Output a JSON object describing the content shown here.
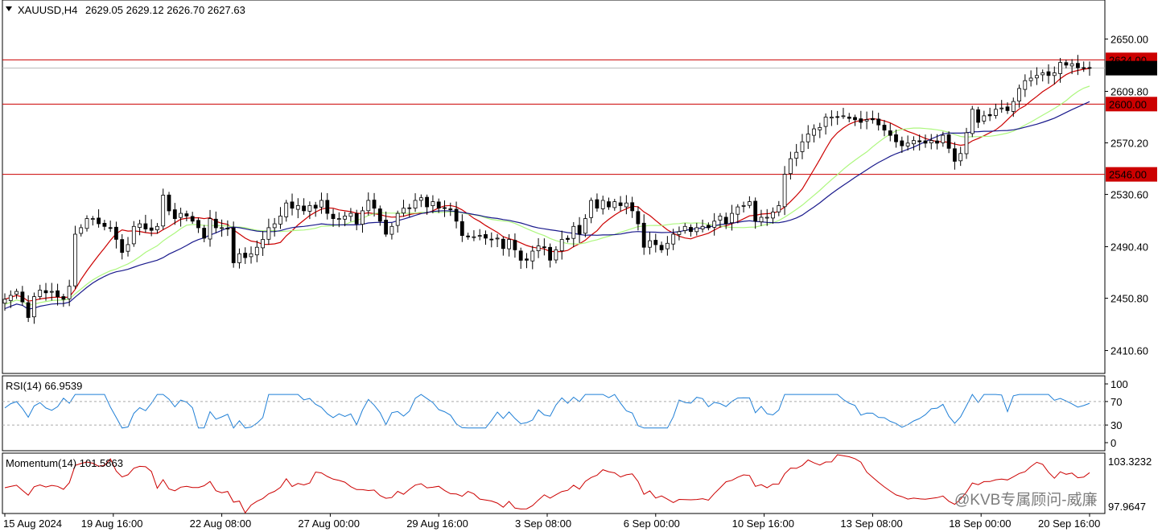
{
  "main_panel": {
    "symbol_title": "XAUUSD,H4",
    "ohlc": "2629.05 2629.12 2626.70 2627.63",
    "price_ticks": [
      "2650.00",
      "2609.80",
      "2570.20",
      "2530.60",
      "2490.40",
      "2450.80",
      "2410.60"
    ],
    "levels": [
      {
        "label": "2634.00",
        "color": "#cc0000"
      },
      {
        "label": "2627.63",
        "color": "#000000"
      },
      {
        "label": "2600.00",
        "color": "#cc0000"
      },
      {
        "label": "2546.00",
        "color": "#cc0000"
      }
    ]
  },
  "rsi_panel": {
    "title": "RSI(14) 66.9539",
    "ticks": [
      "100",
      "70",
      "30",
      "0"
    ],
    "line_color": "#1f7fd6"
  },
  "momentum_panel": {
    "title": "Momentum(14) 101.5863",
    "top_value": "103.3232",
    "bottom_value": "97.9647",
    "line_color": "#cc0000"
  },
  "time_axis": {
    "labels": [
      "15 Aug 2024",
      "19 Aug 16:00",
      "22 Aug 08:00",
      "27 Aug 00:00",
      "29 Aug 16:00",
      "3 Sep 08:00",
      "6 Sep 00:00",
      "10 Sep 16:00",
      "13 Sep 08:00",
      "18 Sep 00:00",
      "20 Sep 16:00"
    ]
  },
  "watermark": "@KVB专属顾问-威廉",
  "colors": {
    "ma_fast": "#cc0000",
    "ma_mid": "#adf77e",
    "ma_slow": "#1a1a8c",
    "candle_up_fill": "#ffffff",
    "candle_down_fill": "#000000"
  },
  "chart_data": [
    {
      "type": "candlestick",
      "title": "XAUUSD,H4",
      "ylim": [
        2393,
        2680
      ],
      "x_labels": [
        "15 Aug 2024",
        "19 Aug 16:00",
        "22 Aug 08:00",
        "27 Aug 00:00",
        "29 Aug 16:00",
        "3 Sep 08:00",
        "6 Sep 00:00",
        "10 Sep 16:00",
        "13 Sep 08:00",
        "18 Sep 00:00",
        "20 Sep 16:00"
      ],
      "close_series": [
        2450,
        2453,
        2456,
        2448,
        2436,
        2452,
        2457,
        2455,
        2456,
        2452,
        2450,
        2460,
        2500,
        2505,
        2512,
        2512,
        2508,
        2506,
        2505,
        2496,
        2486,
        2492,
        2506,
        2508,
        2504,
        2503,
        2506,
        2530,
        2518,
        2512,
        2516,
        2514,
        2510,
        2505,
        2497,
        2512,
        2505,
        2505,
        2504,
        2478,
        2485,
        2482,
        2485,
        2490,
        2496,
        2505,
        2508,
        2514,
        2524,
        2520,
        2522,
        2518,
        2522,
        2520,
        2526,
        2516,
        2512,
        2512,
        2514,
        2516,
        2508,
        2518,
        2526,
        2520,
        2510,
        2500,
        2506,
        2516,
        2520,
        2520,
        2526,
        2528,
        2521,
        2525,
        2520,
        2520,
        2519,
        2510,
        2499,
        2498,
        2498,
        2499,
        2497,
        2496,
        2497,
        2489,
        2496,
        2488,
        2480,
        2480,
        2487,
        2491,
        2490,
        2480,
        2488,
        2496,
        2496,
        2506,
        2500,
        2512,
        2526,
        2520,
        2526,
        2521,
        2525,
        2522,
        2524,
        2518,
        2508,
        2490,
        2495,
        2492,
        2488,
        2493,
        2500,
        2502,
        2506,
        2502,
        2505,
        2506,
        2505,
        2510,
        2514,
        2508,
        2516,
        2521,
        2522,
        2525,
        2510,
        2513,
        2513,
        2517,
        2522,
        2546,
        2558,
        2563,
        2571,
        2577,
        2581,
        2582,
        2590,
        2590,
        2590,
        2591,
        2589,
        2588,
        2586,
        2588,
        2588,
        2584,
        2580,
        2576,
        2571,
        2568,
        2570,
        2572,
        2571,
        2570,
        2572,
        2570,
        2576,
        2566,
        2556,
        2562,
        2578,
        2596,
        2586,
        2591,
        2591,
        2596,
        2597,
        2595,
        2602,
        2612,
        2618,
        2620,
        2622,
        2624,
        2622,
        2624,
        2632,
        2630,
        2631,
        2628,
        2628,
        2627.63
      ],
      "levels": [
        2634.0,
        2627.63,
        2600.0,
        2546.0
      ]
    },
    {
      "type": "line",
      "title": "RSI(14) 66.9539",
      "ylim": [
        0,
        100
      ],
      "levels": [
        70,
        30
      ],
      "last_value": 66.9539
    },
    {
      "type": "line",
      "title": "Momentum(14) 101.5863",
      "ylim": [
        97.9647,
        103.3232
      ],
      "last_value": 101.5863
    }
  ]
}
